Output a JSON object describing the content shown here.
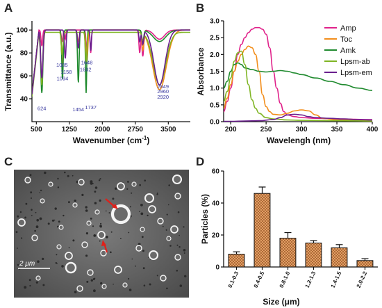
{
  "panels": {
    "A": {
      "letter": "A",
      "chart_data": {
        "type": "line",
        "xlabel": "Wavenumber (cm",
        "xlabel_sup": "-1",
        "xlabel_tail": ")",
        "ylabel": "Transmittance (a.u.)",
        "xlim": [
          400,
          4000
        ],
        "ylim": [
          20,
          108
        ],
        "x_ticks": [
          500,
          1250,
          2000,
          2750,
          3500
        ],
        "y_ticks": [
          40,
          60,
          80,
          100
        ],
        "grid": false,
        "series": [
          {
            "color": "#e0218a",
            "baseline": 100,
            "dips": [
              [
                624,
                86,
                25
              ],
              [
                1085,
                90,
                25
              ],
              [
                1158,
                92,
                20
              ],
              [
                1648,
                82,
                25
              ],
              [
                1737,
                80,
                20
              ],
              [
                2850,
                80,
                25
              ],
              [
                2920,
                77,
                30
              ],
              [
                3300,
                92,
                160
              ]
            ]
          },
          {
            "color": "#f28e1c",
            "baseline": 100,
            "dips": [
              [
                624,
                60,
                40
              ],
              [
                1094,
                70,
                30
              ],
              [
                1454,
                90,
                30
              ],
              [
                1648,
                72,
                30
              ],
              [
                2920,
                85,
                30
              ],
              [
                3300,
                48,
                220
              ]
            ]
          },
          {
            "color": "#1f8a2e",
            "baseline": 100,
            "dips": [
              [
                624,
                45,
                35
              ],
              [
                1094,
                57,
                25
              ],
              [
                1454,
                54,
                25
              ],
              [
                1632,
                45,
                20
              ],
              [
                2920,
                90,
                30
              ],
              [
                3300,
                90,
                200
              ]
            ]
          },
          {
            "color": "#7fb524",
            "baseline": 98,
            "dips": [
              [
                624,
                52,
                30
              ],
              [
                1085,
                78,
                25
              ],
              [
                1632,
                72,
                25
              ],
              [
                2920,
                92,
                30
              ],
              [
                3300,
                52,
                200
              ]
            ]
          },
          {
            "color": "#6a1f8e",
            "baseline": 100,
            "dips": [
              [
                624,
                58,
                35
              ],
              [
                1158,
                75,
                25
              ],
              [
                1454,
                84,
                25
              ],
              [
                1737,
                82,
                20
              ],
              [
                2850,
                90,
                25
              ],
              [
                2920,
                88,
                30
              ],
              [
                3300,
                52,
                180
              ]
            ]
          }
        ],
        "annotations": [
          {
            "text": "624",
            "x": 624,
            "y": 30
          },
          {
            "text": "1085",
            "x": 1085,
            "y": 68
          },
          {
            "text": "1158",
            "x": 1180,
            "y": 62
          },
          {
            "text": "1094",
            "x": 1094,
            "y": 56
          },
          {
            "text": "1454",
            "x": 1454,
            "y": 29
          },
          {
            "text": "1648",
            "x": 1648,
            "y": 70
          },
          {
            "text": "1632",
            "x": 1620,
            "y": 64
          },
          {
            "text": "1737",
            "x": 1737,
            "y": 31
          },
          {
            "text": "2849",
            "x": 3380,
            "y": 49
          },
          {
            "text": "2960",
            "x": 3380,
            "y": 45
          },
          {
            "text": "2920",
            "x": 3380,
            "y": 40
          }
        ]
      }
    },
    "B": {
      "letter": "B",
      "chart_data": {
        "type": "line",
        "xlabel": "Wavelengh (nm)",
        "ylabel": "Absorbance",
        "xlim": [
          190,
          400
        ],
        "ylim": [
          0,
          3.0
        ],
        "x_ticks": [
          200,
          250,
          300,
          350,
          400
        ],
        "y_ticks": [
          0.0,
          0.5,
          1.0,
          1.5,
          2.0,
          2.5,
          3.0
        ],
        "y_tick_labels": [
          "0.0",
          "0.5",
          "1.0",
          "1.5",
          "2.0",
          "2.5",
          "3.0"
        ],
        "legend_position": "top-right",
        "series": [
          {
            "name": "Amp",
            "color": "#e0218a",
            "x": [
              190,
              195,
              200,
              205,
              210,
              215,
              220,
              225,
              230,
              235,
              240,
              245,
              250,
              255,
              260,
              265,
              270,
              275,
              280,
              290,
              300,
              320,
              350,
              400
            ],
            "y": [
              0.3,
              0.6,
              1.0,
              1.5,
              2.0,
              2.3,
              2.5,
              2.65,
              2.75,
              2.8,
              2.8,
              2.75,
              2.6,
              2.2,
              1.5,
              1.0,
              0.55,
              0.3,
              0.2,
              0.15,
              0.12,
              0.1,
              0.08,
              0.06
            ]
          },
          {
            "name": "Toc",
            "color": "#f28e1c",
            "x": [
              190,
              195,
              200,
              205,
              210,
              215,
              220,
              225,
              230,
              235,
              240,
              245,
              250,
              255,
              260,
              270,
              280,
              290,
              300,
              310,
              320,
              330,
              350,
              400
            ],
            "y": [
              0.4,
              0.7,
              1.1,
              1.5,
              1.8,
              2.0,
              2.15,
              2.25,
              2.2,
              2.0,
              1.5,
              0.8,
              0.45,
              0.3,
              0.22,
              0.2,
              0.25,
              0.32,
              0.35,
              0.32,
              0.2,
              0.1,
              0.05,
              0.02
            ]
          },
          {
            "name": "Amk",
            "color": "#1f8a2e",
            "x": [
              190,
              195,
              200,
              205,
              210,
              215,
              220,
              230,
              240,
              250,
              260,
              270,
              280,
              290,
              300,
              320,
              340,
              360,
              380,
              400
            ],
            "y": [
              1.0,
              1.2,
              1.5,
              1.7,
              1.75,
              1.7,
              1.6,
              1.55,
              1.5,
              1.48,
              1.5,
              1.52,
              1.5,
              1.45,
              1.4,
              1.3,
              1.2,
              1.1,
              1.0,
              0.93
            ]
          },
          {
            "name": "Lpsm-ab",
            "color": "#7fb524",
            "x": [
              190,
              195,
              200,
              205,
              210,
              215,
              220,
              225,
              230,
              235,
              240,
              250,
              260,
              280,
              300,
              350,
              400
            ],
            "y": [
              0.6,
              0.9,
              1.3,
              1.8,
              2.05,
              2.1,
              1.7,
              1.1,
              0.65,
              0.4,
              0.25,
              0.12,
              0.08,
              0.05,
              0.04,
              0.03,
              0.02
            ]
          },
          {
            "name": "Lpsm-em",
            "color": "#6a1f8e",
            "x": [
              190,
              200,
              220,
              240,
              260,
              270,
              280,
              290,
              300,
              310,
              320,
              340,
              360,
              380,
              400
            ],
            "y": [
              0.01,
              0.01,
              0.02,
              0.03,
              0.06,
              0.12,
              0.2,
              0.22,
              0.2,
              0.15,
              0.12,
              0.1,
              0.08,
              0.06,
              0.05
            ]
          }
        ]
      }
    },
    "C": {
      "letter": "C",
      "scale_bar_label": "2 μm"
    },
    "D": {
      "letter": "D",
      "chart_data": {
        "type": "bar",
        "xlabel": "Size (μm)",
        "ylabel": "Particles (%)",
        "ylim": [
          0,
          60
        ],
        "y_ticks": [
          0,
          20,
          40,
          60
        ],
        "categories": [
          "0.1-0.3",
          "0.4-0.5",
          "0.8-1.0",
          "1.2-1.3",
          "1.4-1.5",
          "2.0-2.2"
        ],
        "values": [
          8,
          46,
          18,
          15,
          12,
          4
        ],
        "errors": [
          1.5,
          4,
          3.5,
          1.5,
          2,
          1.2
        ],
        "bar_color": "#d9823a",
        "pattern": "crosshatch"
      }
    }
  }
}
